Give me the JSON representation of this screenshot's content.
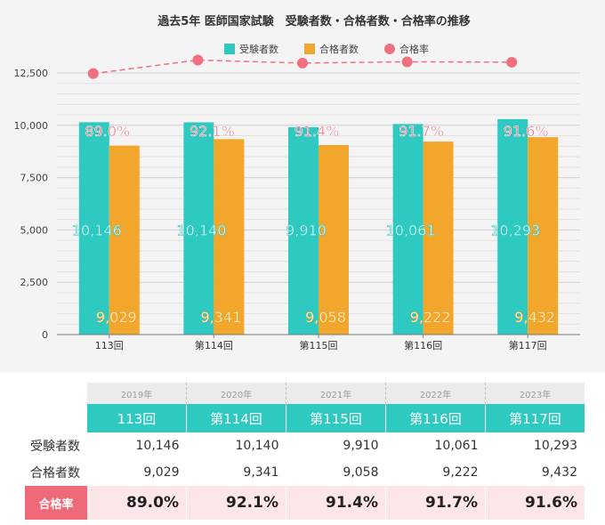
{
  "chart_data": {
    "type": "bar",
    "title": "過去5年 医師国家試験　受験者数・合格者数・合格率の推移",
    "categories": [
      "113回",
      "第114回",
      "第115回",
      "第116回",
      "第117回"
    ],
    "series": [
      {
        "name": "受験者数",
        "type": "bar",
        "color": "#2ec9c0",
        "values": [
          10146,
          10140,
          9910,
          10061,
          10293
        ],
        "labels": [
          "10,146",
          "10,140",
          "9,910",
          "10,061",
          "10,293"
        ]
      },
      {
        "name": "合格者数",
        "type": "bar",
        "color": "#f2a72c",
        "values": [
          9029,
          9341,
          9058,
          9222,
          9432
        ],
        "labels": [
          "9,029",
          "9,341",
          "9,058",
          "9,222",
          "9,432"
        ]
      },
      {
        "name": "合格率",
        "type": "line",
        "color": "#f07080",
        "values": [
          89.0,
          92.1,
          91.4,
          91.7,
          91.6
        ],
        "labels": [
          "89.0%",
          "92.1%",
          "91.4%",
          "91.7%",
          "91.6%"
        ]
      }
    ],
    "ylim": [
      0,
      12500
    ],
    "yticks": [
      0,
      2500,
      5000,
      7500,
      10000,
      12500
    ],
    "ytick_labels": [
      "0",
      "2,500",
      "5,000",
      "7,500",
      "10,000",
      "12,500"
    ],
    "grid": true,
    "legend_position": "top"
  },
  "table": {
    "years": [
      "2019年",
      "2020年",
      "2021年",
      "2022年",
      "2023年"
    ],
    "exams": [
      "113回",
      "第114回",
      "第115回",
      "第116回",
      "第117回"
    ],
    "rows": [
      {
        "label": "受験者数",
        "values": [
          "10,146",
          "10,140",
          "9,910",
          "10,061",
          "10,293"
        ]
      },
      {
        "label": "合格者数",
        "values": [
          "9,029",
          "9,341",
          "9,058",
          "9,222",
          "9,432"
        ]
      }
    ],
    "rate": {
      "label": "合格率",
      "values": [
        "89.0%",
        "92.1%",
        "91.4%",
        "91.7%",
        "91.6%"
      ]
    }
  }
}
